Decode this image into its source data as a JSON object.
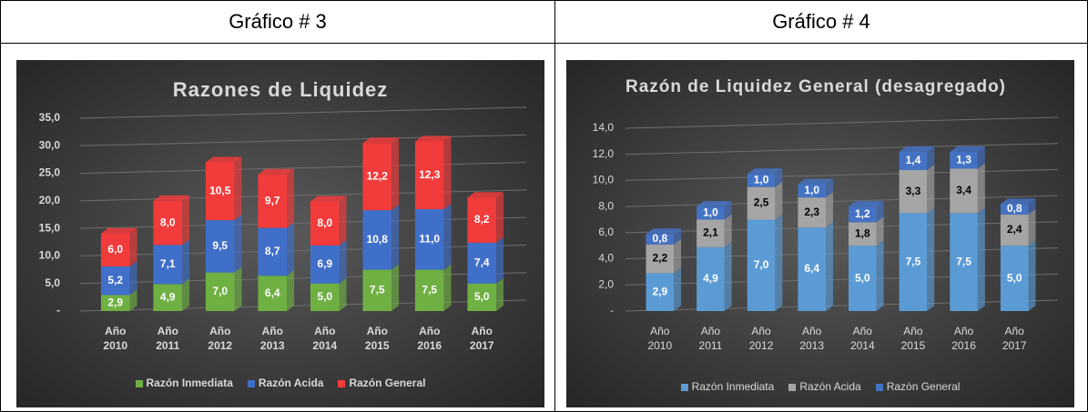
{
  "table": {
    "headers": [
      "Gráfico # 3",
      "Gráfico # 4"
    ]
  },
  "chart_data": [
    {
      "type": "bar",
      "stacked": true,
      "title": "Razones de Liquidez",
      "categories": [
        "Año 2010",
        "Año 2011",
        "Año 2012",
        "Año 2013",
        "Año 2014",
        "Año 2015",
        "Año 2016",
        "Año 2017"
      ],
      "series": [
        {
          "name": "Razón Inmediata",
          "color": "#6fb043",
          "label_color": "#ffffff",
          "values": [
            2.9,
            4.9,
            7.0,
            6.4,
            5.0,
            7.5,
            7.5,
            5.0
          ],
          "value_labels": [
            "2,9",
            "4,9",
            "7,0",
            "6,4",
            "5,0",
            "7,5",
            "7,5",
            "5,0"
          ]
        },
        {
          "name": "Razón Acida",
          "color": "#3f6fc9",
          "label_color": "#ffffff",
          "values": [
            5.2,
            7.1,
            9.5,
            8.7,
            6.9,
            10.8,
            11.0,
            7.4
          ],
          "value_labels": [
            "5,2",
            "7,1",
            "9,5",
            "8,7",
            "6,9",
            "10,8",
            "11,0",
            "7,4"
          ]
        },
        {
          "name": "Razón General",
          "color": "#f23b3b",
          "label_color": "#ffffff",
          "values": [
            6.0,
            8.0,
            10.5,
            9.7,
            8.0,
            12.2,
            12.3,
            8.2
          ],
          "value_labels": [
            "6,0",
            "8,0",
            "10,5",
            "9,7",
            "8,0",
            "12,2",
            "12,3",
            "8,2"
          ]
        }
      ],
      "ylim": [
        0,
        35
      ],
      "yticks": [
        {
          "value": 0,
          "label": "-"
        },
        {
          "value": 5,
          "label": "5,0"
        },
        {
          "value": 10,
          "label": "10,0"
        },
        {
          "value": 15,
          "label": "15,0"
        },
        {
          "value": 20,
          "label": "20,0"
        },
        {
          "value": 25,
          "label": "25,0"
        },
        {
          "value": 30,
          "label": "30,0"
        },
        {
          "value": 35,
          "label": "35,0"
        }
      ],
      "grid": true,
      "legend": "bottom"
    },
    {
      "type": "bar",
      "stacked": true,
      "title": "Razón de Liquidez General (desagregado)",
      "categories": [
        "Año 2010",
        "Año 2011",
        "Año 2012",
        "Año 2013",
        "Año 2014",
        "Año 2015",
        "Año 2016",
        "Año 2017"
      ],
      "series": [
        {
          "name": "Razón Inmediata",
          "color": "#5b9bd5",
          "label_color": "#ffffff",
          "values": [
            2.9,
            4.9,
            7.0,
            6.4,
            5.0,
            7.5,
            7.5,
            5.0
          ],
          "value_labels": [
            "2,9",
            "4,9",
            "7,0",
            "6,4",
            "5,0",
            "7,5",
            "7,5",
            "5,0"
          ]
        },
        {
          "name": "Razón Acida",
          "color": "#a5a5a5",
          "label_color": "#000000",
          "values": [
            2.2,
            2.1,
            2.5,
            2.3,
            1.8,
            3.3,
            3.4,
            2.4
          ],
          "value_labels": [
            "2,2",
            "2,1",
            "2,5",
            "2,3",
            "1,8",
            "3,3",
            "3,4",
            "2,4"
          ]
        },
        {
          "name": "Razón General",
          "color": "#4472c4",
          "label_color": "#ffffff",
          "values": [
            0.8,
            1.0,
            1.0,
            1.0,
            1.2,
            1.4,
            1.3,
            0.8
          ],
          "value_labels": [
            "0,8",
            "1,0",
            "1,0",
            "1,0",
            "1,2",
            "1,4",
            "1,3",
            "0,8"
          ]
        }
      ],
      "ylim": [
        0,
        14
      ],
      "yticks": [
        {
          "value": 0,
          "label": "-"
        },
        {
          "value": 2,
          "label": "2,0"
        },
        {
          "value": 4,
          "label": "4,0"
        },
        {
          "value": 6,
          "label": "6,0"
        },
        {
          "value": 8,
          "label": "8,0"
        },
        {
          "value": 10,
          "label": "10,0"
        },
        {
          "value": 12,
          "label": "12,0"
        },
        {
          "value": 14,
          "label": "14,0"
        }
      ],
      "grid": true,
      "legend": "bottom"
    }
  ]
}
